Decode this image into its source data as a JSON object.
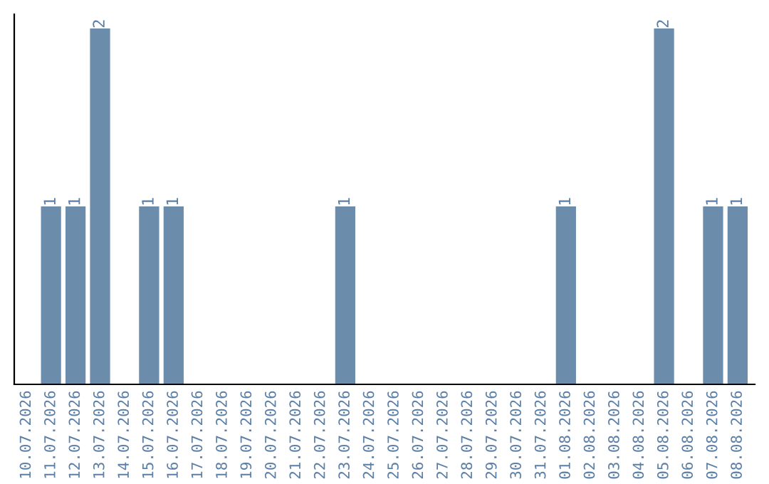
{
  "chart_data": {
    "type": "bar",
    "categories": [
      "10.07.2026",
      "11.07.2026",
      "12.07.2026",
      "13.07.2026",
      "14.07.2026",
      "15.07.2026",
      "16.07.2026",
      "17.07.2026",
      "18.07.2026",
      "19.07.2026",
      "20.07.2026",
      "21.07.2026",
      "22.07.2026",
      "23.07.2026",
      "24.07.2026",
      "25.07.2026",
      "26.07.2026",
      "27.07.2026",
      "28.07.2026",
      "29.07.2026",
      "30.07.2026",
      "31.07.2026",
      "01.08.2026",
      "02.08.2026",
      "03.08.2026",
      "04.08.2026",
      "05.08.2026",
      "06.08.2026",
      "07.08.2026",
      "08.08.2026"
    ],
    "values": [
      0,
      1,
      1,
      2,
      0,
      1,
      1,
      0,
      0,
      0,
      0,
      0,
      0,
      1,
      0,
      0,
      0,
      0,
      0,
      0,
      0,
      0,
      1,
      0,
      0,
      0,
      2,
      0,
      1,
      1
    ],
    "value_labels": [
      null,
      "1",
      "1",
      "2",
      null,
      "1",
      "1",
      null,
      null,
      null,
      null,
      null,
      null,
      "1",
      null,
      null,
      null,
      null,
      null,
      null,
      null,
      null,
      "1",
      null,
      null,
      null,
      "2",
      null,
      "1",
      "1"
    ],
    "color": "#6b8cab",
    "ylim": [
      0,
      2.08
    ],
    "tick_labels": "x",
    "grid": false,
    "legend": false
  }
}
